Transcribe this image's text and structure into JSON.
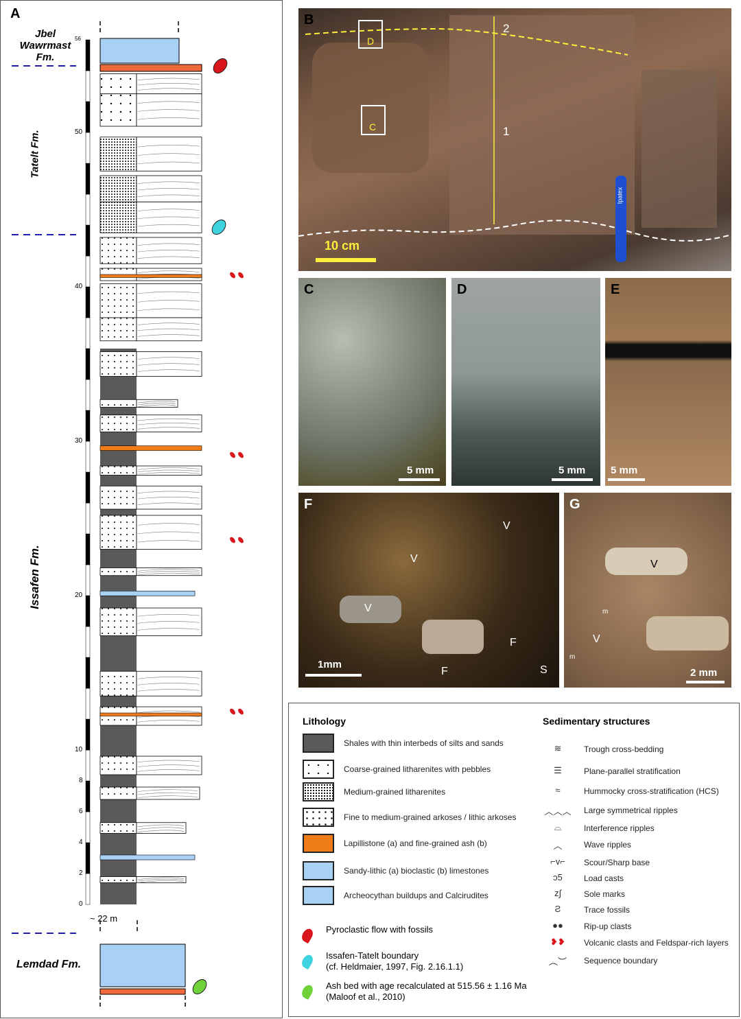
{
  "panel_a": {
    "label": "A",
    "formations": [
      "Jbel Wawrmast Fm.",
      "Tatelt Fm.",
      "Issafen Fm.",
      "Lemdad Fm."
    ],
    "scale_ticks": [
      "56",
      "50",
      "40",
      "30",
      "20",
      "10",
      "8",
      "6",
      "4",
      "2",
      "0"
    ],
    "gap_label": "~ 22 m"
  },
  "panel_b": {
    "label": "B",
    "box_labels": [
      "D",
      "C"
    ],
    "interval_labels": [
      "1",
      "2"
    ],
    "scale": "10 cm",
    "pen_text": "Ipatex"
  },
  "panel_c": {
    "label": "C",
    "scale": "5 mm"
  },
  "panel_d": {
    "label": "D",
    "scale": "5 mm"
  },
  "panel_e": {
    "label": "E",
    "scale": "5 mm"
  },
  "panel_f": {
    "label": "F",
    "scale": "1mm",
    "marks": [
      "V",
      "V",
      "V",
      "F",
      "F",
      "S"
    ]
  },
  "panel_g": {
    "label": "G",
    "scale": "2 mm",
    "marks": [
      "V",
      "V",
      "m",
      "m"
    ]
  },
  "legend": {
    "lithology_title": "Lithology",
    "lithology": [
      "Shales with thin interbeds of silts and sands",
      "Coarse-grained litharenites with pebbles",
      "Medium-grained litharenites",
      "Fine to medium-grained arkoses / lithic arkoses",
      "Lapillistone (a) and fine-grained ash (b)",
      "Sandy-lithic (a) bioclastic (b) limestones",
      "Archeocythan buildups and Calcirudites"
    ],
    "markers": [
      {
        "label": "Pyroclastic flow with fossils",
        "color": "#d8161b"
      },
      {
        "label": "Issafen-Tatelt boundary",
        "sub": "(cf. Heldmaier, 1997, Fig. 2.16.1.1)",
        "color": "#3fd3e0"
      },
      {
        "label": "Ash bed with age recalculated at 515.56 ± 1.16 Ma",
        "sub": "(Maloof et al., 2010)",
        "color": "#6fd23a"
      }
    ],
    "structures_title": "Sedimentary structures",
    "structures": [
      "Trough cross-bedding",
      "Plane-parallel stratification",
      "Hummocky cross-stratification (HCS)",
      "Large symmetrical ripples",
      "Interference ripples",
      "Wave ripples",
      "Scour/Sharp base",
      "Load casts",
      "Sole marks",
      "Trace fossils",
      "Rip-up clasts",
      "Volcanic clasts and Feldspar-rich layers",
      "Sequence boundary"
    ]
  },
  "colors": {
    "lapilli": "#f07d1a",
    "limestone": "#a9d0f5",
    "shale": "#5a5a5a",
    "boundary": "#1f1fb0"
  }
}
